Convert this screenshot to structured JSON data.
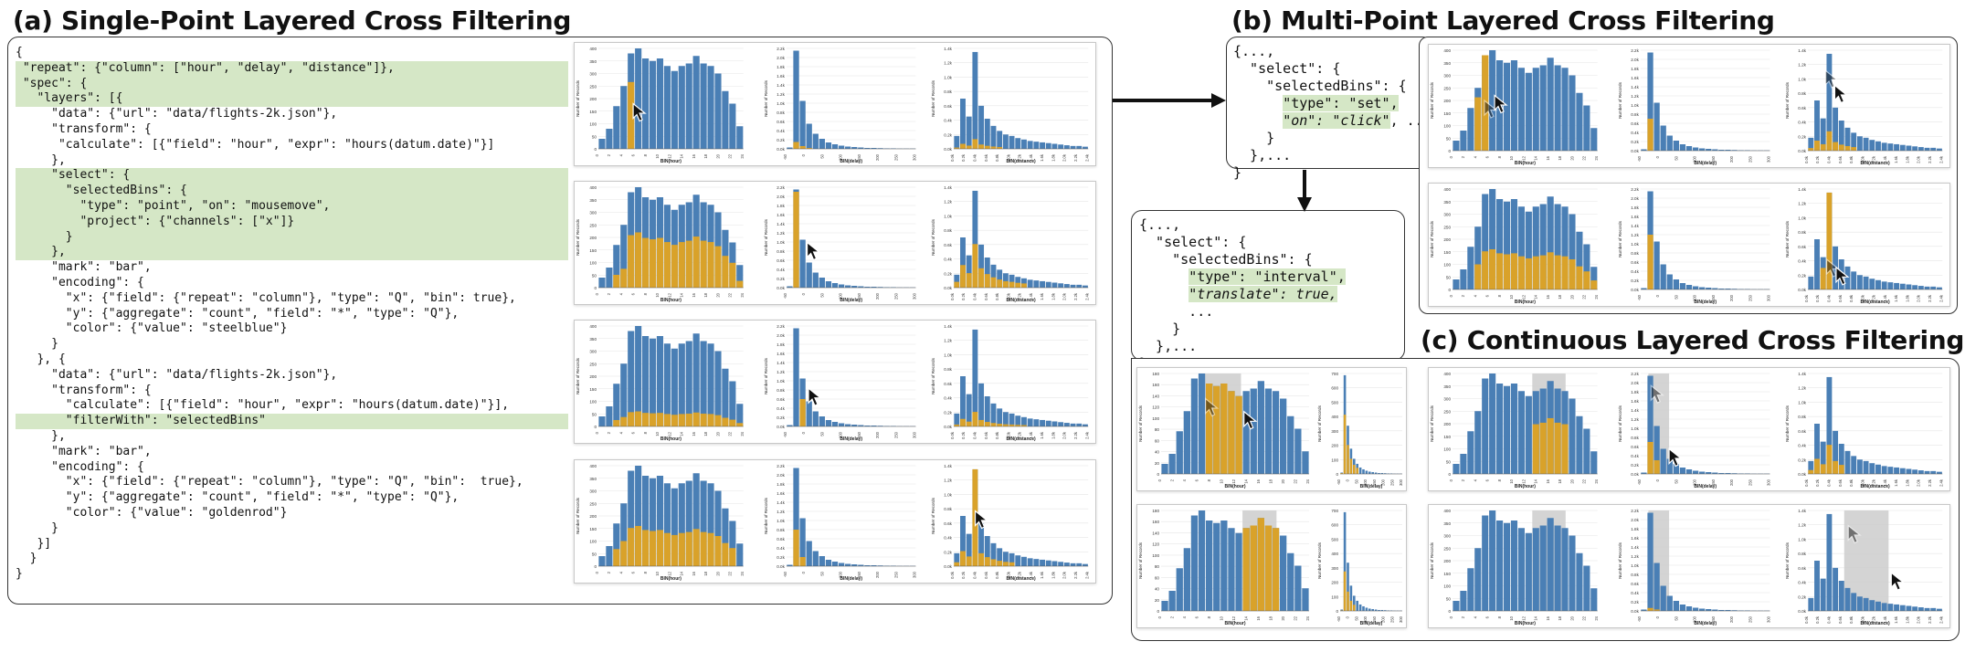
{
  "titles": {
    "a": "(a) Single-Point Layered Cross Filtering",
    "b": "(b) Multi-Point Layered Cross Filtering",
    "c": "(c) Continuous  Layered Cross Filtering"
  },
  "code_a": [
    {
      "t": "{",
      "hl": false
    },
    {
      "t": " \"repeat\": {\"column\": [\"hour\", \"delay\", \"distance\"]},",
      "hl": true
    },
    {
      "t": " \"spec\": {",
      "hl": true
    },
    {
      "t": "   \"layers\": [{",
      "hl": true
    },
    {
      "t": "     \"data\": {\"url\": \"data/flights-2k.json\"},",
      "hl": false
    },
    {
      "t": "     \"transform\": {",
      "hl": false
    },
    {
      "t": "      \"calculate\": [{\"field\": \"hour\", \"expr\": \"hours(datum.date)\"}]",
      "hl": false
    },
    {
      "t": "     },",
      "hl": false
    },
    {
      "t": "     \"select\": {",
      "hl": true
    },
    {
      "t": "       \"selectedBins\": {",
      "hl": true
    },
    {
      "t": "         \"type\": \"point\", \"on\": \"mousemove\",",
      "hl": true
    },
    {
      "t": "         \"project\": {\"channels\": [\"x\"]}",
      "hl": true
    },
    {
      "t": "       }",
      "hl": true
    },
    {
      "t": "     },",
      "hl": true
    },
    {
      "t": "     \"mark\": \"bar\",",
      "hl": false
    },
    {
      "t": "     \"encoding\": {",
      "hl": false
    },
    {
      "t": "       \"x\": {\"field\": {\"repeat\": \"column\"}, \"type\": \"Q\", \"bin\": true},",
      "hl": false
    },
    {
      "t": "       \"y\": {\"aggregate\": \"count\", \"field\": \"*\", \"type\": \"Q\"},",
      "hl": false
    },
    {
      "t": "       \"color\": {\"value\": \"steelblue\"}",
      "hl": false
    },
    {
      "t": "     }",
      "hl": false
    },
    {
      "t": "   }, {",
      "hl": false
    },
    {
      "t": "     \"data\": {\"url\": \"data/flights-2k.json\"},",
      "hl": false
    },
    {
      "t": "     \"transform\": {",
      "hl": false
    },
    {
      "t": "       \"calculate\": [{\"field\": \"hour\", \"expr\": \"hours(datum.date)\"}],",
      "hl": false
    },
    {
      "t": "       \"filterWith\": \"selectedBins\"",
      "hl": true
    },
    {
      "t": "     },",
      "hl": false
    },
    {
      "t": "     \"mark\": \"bar\",",
      "hl": false
    },
    {
      "t": "     \"encoding\": {",
      "hl": false
    },
    {
      "t": "       \"x\": {\"field\": {\"repeat\": \"column\"}, \"type\": \"Q\", \"bin\":  true},",
      "hl": false
    },
    {
      "t": "       \"y\": {\"aggregate\": \"count\", \"field\": \"*\", \"type\": \"Q\"},",
      "hl": false
    },
    {
      "t": "       \"color\": {\"value\": \"goldenrod\"}",
      "hl": false
    },
    {
      "t": "     }",
      "hl": false
    },
    {
      "t": "   }]",
      "hl": false
    },
    {
      "t": "  }",
      "hl": false
    },
    {
      "t": "}",
      "hl": false
    }
  ],
  "code_b": {
    "l1": "{...,",
    "l2": "  \"select\": {",
    "l3": "    \"selectedBins\": {",
    "hl1": "\"type\": \"set\",",
    "hl2": "\"on\": \"click\"",
    "l4_tail": ", ...",
    "l5": "    }",
    "l6": "  },...",
    "l7": "}"
  },
  "code_c": {
    "l1": "{...,",
    "l2": "  \"select\": {",
    "l3": "    \"selectedBins\": {",
    "hl1": "\"type\": \"interval\",",
    "hl2": "\"translate\": true,",
    "l4": "      ...",
    "l5": "    }",
    "l6": "  },...",
    "l7": "}"
  },
  "colors": {
    "steelblue": "#4a7fb5",
    "goldenrod": "#d9a22a",
    "highlight": "#d5e7c6",
    "brush": "#cccccc"
  },
  "axis_labels": {
    "hour": "BIN(hour)",
    "delay": "BIN(delay)",
    "distance": "BIN(distance)",
    "y": "Number of Records"
  },
  "ticks": {
    "hour_x": [
      "0",
      "2",
      "4",
      "6",
      "8",
      "10",
      "12",
      "14",
      "16",
      "18",
      "20",
      "22",
      "24"
    ],
    "delay_x": [
      "-50",
      "0",
      "50",
      "100",
      "150",
      "200",
      "250",
      "300"
    ],
    "dist_x": [
      "0.0k",
      "0.2k",
      "0.4k",
      "0.6k",
      "0.8k",
      "1.0k",
      "1.2k",
      "1.4k",
      "1.6k",
      "1.8k",
      "2.0k",
      "2.2k",
      "2.4k"
    ],
    "hour_y": [
      "0",
      "50",
      "100",
      "150",
      "200",
      "250",
      "300",
      "350",
      "400"
    ],
    "hour_y_small": [
      "0",
      "20",
      "40",
      "60",
      "80",
      "100",
      "120",
      "140",
      "160",
      "180"
    ],
    "delay_y": [
      "0.0k",
      "0.2k",
      "0.4k",
      "0.6k",
      "0.8k",
      "1.0k",
      "1.2k",
      "1.4k",
      "1.6k",
      "1.8k",
      "2.0k",
      "2.2k"
    ],
    "delay_y_small": [
      "0",
      "100",
      "200",
      "300",
      "400",
      "500",
      "600",
      "700"
    ],
    "dist_y": [
      "0.0k",
      "0.2k",
      "0.4k",
      "0.6k",
      "0.8k",
      "1.0k",
      "1.2k",
      "1.4k"
    ]
  },
  "chart_data": [
    {
      "type": "bar",
      "id": "hour",
      "xlabel": "BIN(hour)",
      "ylabel": "Number of Records",
      "ylim": [
        0,
        400
      ],
      "series": [
        {
          "name": "steelblue",
          "values": [
            40,
            80,
            170,
            250,
            380,
            400,
            360,
            350,
            360,
            330,
            310,
            330,
            340,
            370,
            340,
            330,
            300,
            230,
            180,
            90
          ]
        }
      ]
    },
    {
      "type": "bar",
      "id": "delay",
      "xlabel": "BIN(delay)",
      "ylabel": "Number of Records",
      "ylim": [
        0,
        2200
      ],
      "series": [
        {
          "name": "steelblue",
          "values": [
            30,
            2150,
            1050,
            550,
            330,
            220,
            140,
            100,
            70,
            50,
            40,
            30,
            20,
            20,
            15,
            10,
            10,
            5,
            5,
            5
          ]
        }
      ]
    },
    {
      "type": "bar",
      "id": "distance",
      "xlabel": "BIN(distance)",
      "ylabel": "Number of Records",
      "ylim": [
        0,
        1400
      ],
      "series": [
        {
          "name": "steelblue",
          "values": [
            180,
            700,
            450,
            1350,
            600,
            420,
            320,
            250,
            200,
            180,
            150,
            130,
            110,
            100,
            90,
            80,
            70,
            60,
            50,
            40,
            40,
            30
          ]
        }
      ]
    }
  ]
}
